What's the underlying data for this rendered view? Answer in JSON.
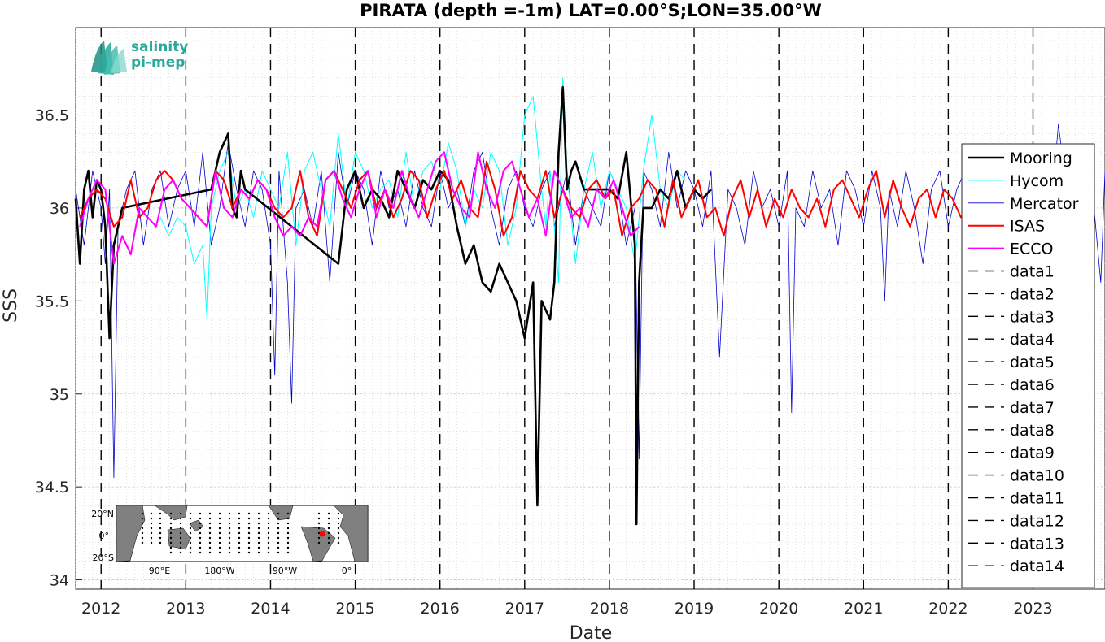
{
  "chart_data": {
    "type": "line",
    "title": "PIRATA (depth =-1m) LAT=0.00°S;LON=35.00°W",
    "xlabel": "Date",
    "ylabel": "SSS",
    "xlim": [
      2011.7,
      2023.85
    ],
    "ylim": [
      33.95,
      36.97
    ],
    "yticks": [
      34,
      34.5,
      35,
      35.5,
      36,
      36.5
    ],
    "ytick_labels": [
      "34",
      "34.5",
      "35",
      "35.5",
      "36",
      "36.5"
    ],
    "xticks": [
      2012,
      2013,
      2014,
      2015,
      2016,
      2017,
      2018,
      2019,
      2020,
      2021,
      2022,
      2023
    ],
    "xtick_labels": [
      "2012",
      "2013",
      "2014",
      "2015",
      "2016",
      "2017",
      "2018",
      "2019",
      "2020",
      "2021",
      "2022",
      "2023"
    ],
    "grid": true,
    "legend_position": "right",
    "vlines": [
      2012,
      2013,
      2014,
      2015,
      2016,
      2017,
      2018,
      2019,
      2020,
      2021,
      2022,
      2023
    ],
    "series": [
      {
        "name": "Mooring",
        "color": "#000000",
        "style": "solid",
        "x": [
          2011.7,
          2011.75,
          2011.8,
          2011.85,
          2011.9,
          2011.95,
          2012.0,
          2012.05,
          2012.1,
          2012.15,
          2012.2,
          2012.25,
          2013.3,
          2013.4,
          2013.5,
          2013.55,
          2013.6,
          2013.65,
          2013.7,
          2014.8,
          2014.9,
          2015.0,
          2015.1,
          2015.2,
          2015.3,
          2015.4,
          2015.5,
          2015.6,
          2015.7,
          2015.8,
          2015.9,
          2016.0,
          2016.1,
          2016.2,
          2016.3,
          2016.4,
          2016.5,
          2016.6,
          2016.7,
          2016.8,
          2016.9,
          2017.0,
          2017.1,
          2017.15,
          2017.2,
          2017.3,
          2017.35,
          2017.4,
          2017.45,
          2017.5,
          2017.55,
          2017.6,
          2017.7,
          2018.0,
          2018.1,
          2018.2,
          2018.3,
          2018.32,
          2018.35,
          2018.4,
          2018.5,
          2018.6,
          2018.7,
          2018.8,
          2018.9,
          2019.0,
          2019.1,
          2019.2
        ],
        "y": [
          36.05,
          35.7,
          36.1,
          36.2,
          35.95,
          36.15,
          36.1,
          35.9,
          35.3,
          35.8,
          35.9,
          36.0,
          36.1,
          36.3,
          36.4,
          36.0,
          35.95,
          36.2,
          36.1,
          35.7,
          36.1,
          36.2,
          36.0,
          36.1,
          36.05,
          35.95,
          36.2,
          36.1,
          36.0,
          36.15,
          36.1,
          36.2,
          36.15,
          35.9,
          35.7,
          35.8,
          35.6,
          35.55,
          35.7,
          35.6,
          35.5,
          35.3,
          35.6,
          34.4,
          35.5,
          35.4,
          35.6,
          36.3,
          36.65,
          36.1,
          36.2,
          36.25,
          36.1,
          36.1,
          36.05,
          36.3,
          35.8,
          34.3,
          35.6,
          36.0,
          36.0,
          36.1,
          36.05,
          36.2,
          36.0,
          36.1,
          36.05,
          36.1
        ]
      },
      {
        "name": "Hycom",
        "color": "#00ffff",
        "style": "solid",
        "x": [
          2012.7,
          2012.8,
          2012.9,
          2013.0,
          2013.1,
          2013.2,
          2013.25,
          2013.3,
          2013.4,
          2013.5,
          2013.6,
          2013.7,
          2013.8,
          2013.9,
          2014.0,
          2014.1,
          2014.2,
          2014.3,
          2014.4,
          2014.5,
          2014.6,
          2014.7,
          2014.8,
          2014.9,
          2015.0,
          2015.1,
          2015.2,
          2015.3,
          2015.4,
          2015.5,
          2015.6,
          2015.7,
          2015.8,
          2015.9,
          2016.0,
          2016.1,
          2016.2,
          2016.3,
          2016.4,
          2016.5,
          2016.6,
          2016.7,
          2016.8,
          2016.9,
          2017.0,
          2017.1,
          2017.2,
          2017.25,
          2017.3,
          2017.4,
          2017.45,
          2017.5,
          2017.6,
          2017.7,
          2017.8,
          2017.9,
          2018.0,
          2018.1,
          2018.2,
          2018.3,
          2018.4,
          2018.5,
          2018.6,
          2018.7,
          2018.8,
          2018.9
        ],
        "y": [
          35.95,
          35.85,
          35.95,
          35.9,
          35.7,
          35.8,
          35.4,
          36.0,
          36.2,
          36.3,
          36.0,
          36.1,
          35.95,
          36.2,
          36.1,
          36.0,
          36.3,
          35.8,
          36.2,
          36.3,
          36.1,
          35.9,
          36.4,
          36.0,
          36.3,
          36.2,
          36.0,
          36.1,
          36.15,
          35.95,
          36.3,
          36.0,
          36.2,
          36.25,
          36.1,
          36.35,
          36.2,
          35.9,
          36.1,
          36.0,
          36.3,
          36.2,
          35.8,
          36.0,
          36.5,
          36.6,
          36.1,
          35.9,
          36.2,
          35.6,
          36.7,
          36.2,
          35.7,
          36.1,
          36.3,
          36.0,
          36.2,
          36.1,
          36.0,
          35.7,
          36.2,
          36.5,
          36.1,
          36.0,
          36.2,
          36.15
        ]
      },
      {
        "name": "Mercator",
        "color": "#0000cd",
        "style": "solid",
        "x": [
          2011.7,
          2011.8,
          2011.9,
          2012.0,
          2012.05,
          2012.1,
          2012.15,
          2012.2,
          2012.3,
          2012.4,
          2012.5,
          2012.6,
          2012.7,
          2012.8,
          2012.9,
          2013.0,
          2013.1,
          2013.2,
          2013.3,
          2013.4,
          2013.5,
          2013.6,
          2013.7,
          2013.8,
          2013.9,
          2014.0,
          2014.05,
          2014.1,
          2014.2,
          2014.25,
          2014.3,
          2014.4,
          2014.5,
          2014.6,
          2014.7,
          2014.8,
          2014.9,
          2015.0,
          2015.1,
          2015.2,
          2015.3,
          2015.4,
          2015.5,
          2015.6,
          2015.7,
          2015.8,
          2015.9,
          2016.0,
          2016.1,
          2016.2,
          2016.3,
          2016.4,
          2016.5,
          2016.6,
          2016.7,
          2016.8,
          2016.9,
          2017.0,
          2017.1,
          2017.2,
          2017.3,
          2017.35,
          2017.4,
          2017.5,
          2017.6,
          2017.7,
          2017.8,
          2017.9,
          2018.0,
          2018.1,
          2018.2,
          2018.3,
          2018.35,
          2018.4,
          2018.5,
          2018.6,
          2018.7,
          2018.8,
          2018.9,
          2019.0,
          2019.1,
          2019.2,
          2019.3,
          2019.4,
          2019.5,
          2019.6,
          2019.7,
          2019.8,
          2019.9,
          2020.0,
          2020.1,
          2020.15,
          2020.2,
          2020.3,
          2020.4,
          2020.5,
          2020.6,
          2020.7,
          2020.8,
          2020.9,
          2021.0,
          2021.1,
          2021.2,
          2021.25,
          2021.3,
          2021.4,
          2021.5,
          2021.6,
          2021.7,
          2021.8,
          2021.9,
          2022.0,
          2022.1,
          2022.2,
          2022.3,
          2022.4,
          2022.5,
          2022.6,
          2022.7,
          2022.8,
          2022.9,
          2023.0,
          2023.1,
          2023.2,
          2023.3,
          2023.4,
          2023.5,
          2023.6,
          2023.7,
          2023.8,
          2023.85
        ],
        "y": [
          36.1,
          35.8,
          36.2,
          36.0,
          35.7,
          36.1,
          34.55,
          35.9,
          36.1,
          36.2,
          35.8,
          36.1,
          36.2,
          35.9,
          36.1,
          36.2,
          35.9,
          36.3,
          35.8,
          36.0,
          36.35,
          36.1,
          35.9,
          36.2,
          36.1,
          35.8,
          35.1,
          36.2,
          35.6,
          34.95,
          36.0,
          36.1,
          35.9,
          36.2,
          35.6,
          36.3,
          36.0,
          36.2,
          36.1,
          35.8,
          36.2,
          36.0,
          36.1,
          35.9,
          36.2,
          36.0,
          35.9,
          36.2,
          36.0,
          36.1,
          35.9,
          36.2,
          36.3,
          36.0,
          35.8,
          36.1,
          36.2,
          36.0,
          35.9,
          36.1,
          36.2,
          35.9,
          36.0,
          36.2,
          35.8,
          36.1,
          36.0,
          35.9,
          36.2,
          36.1,
          35.8,
          36.0,
          34.65,
          36.2,
          36.1,
          35.9,
          36.3,
          36.0,
          36.2,
          36.1,
          35.9,
          36.2,
          35.2,
          36.1,
          36.0,
          35.8,
          36.2,
          36.0,
          36.1,
          35.9,
          36.2,
          34.9,
          36.0,
          35.9,
          36.2,
          36.0,
          36.1,
          35.8,
          36.2,
          36.1,
          35.9,
          36.2,
          36.0,
          35.5,
          36.1,
          35.9,
          36.2,
          36.0,
          35.7,
          36.1,
          36.2,
          35.9,
          36.1,
          36.2,
          35.9,
          36.0,
          36.2,
          35.8,
          36.1,
          36.0,
          35.9,
          36.2,
          36.1,
          35.9,
          36.45,
          36.1,
          35.8,
          36.2,
          36.1,
          35.6,
          36.2
        ]
      },
      {
        "name": "ISAS",
        "color": "#ff0000",
        "style": "solid",
        "x": [
          2011.75,
          2011.85,
          2011.95,
          2012.05,
          2012.15,
          2012.25,
          2012.35,
          2012.45,
          2012.55,
          2012.65,
          2012.75,
          2012.85,
          2012.95,
          2013.05,
          2013.15,
          2013.25,
          2013.35,
          2013.45,
          2013.55,
          2013.65,
          2013.75,
          2013.85,
          2013.95,
          2014.05,
          2014.15,
          2014.25,
          2014.35,
          2014.45,
          2014.55,
          2014.65,
          2014.75,
          2014.85,
          2014.95,
          2015.05,
          2015.15,
          2015.25,
          2015.35,
          2015.45,
          2015.55,
          2015.65,
          2015.75,
          2015.85,
          2015.95,
          2016.05,
          2016.15,
          2016.25,
          2016.35,
          2016.45,
          2016.55,
          2016.65,
          2016.75,
          2016.85,
          2016.95,
          2017.05,
          2017.15,
          2017.25,
          2017.35,
          2017.45,
          2017.55,
          2017.65,
          2017.75,
          2017.85,
          2017.95,
          2018.05,
          2018.15,
          2018.25,
          2018.35,
          2018.45,
          2018.55,
          2018.65,
          2018.75,
          2018.85,
          2018.95,
          2019.05,
          2019.15,
          2019.25,
          2019.35,
          2019.45,
          2019.55,
          2019.65,
          2019.75,
          2019.85,
          2019.95,
          2020.05,
          2020.15,
          2020.25,
          2020.35,
          2020.45,
          2020.55,
          2020.65,
          2020.75,
          2020.85,
          2020.95,
          2021.05,
          2021.15,
          2021.25,
          2021.35,
          2021.45,
          2021.55,
          2021.65,
          2021.75,
          2021.85,
          2021.95,
          2022.05,
          2022.15,
          2022.25
        ],
        "y": [
          35.95,
          36.05,
          36.1,
          36.05,
          35.9,
          35.95,
          36.15,
          35.95,
          36.0,
          36.15,
          36.2,
          36.15,
          36.05,
          36.0,
          35.95,
          35.9,
          36.2,
          36.15,
          36.0,
          36.1,
          36.05,
          36.15,
          36.1,
          36.0,
          35.95,
          36.0,
          36.2,
          35.95,
          35.85,
          36.15,
          36.2,
          36.1,
          36.0,
          36.15,
          36.2,
          36.0,
          36.1,
          35.95,
          36.05,
          36.2,
          36.15,
          35.95,
          36.1,
          36.2,
          36.05,
          36.15,
          36.0,
          35.95,
          36.25,
          36.1,
          35.85,
          35.95,
          36.2,
          36.1,
          36.05,
          36.2,
          35.95,
          36.1,
          36.0,
          35.95,
          36.1,
          36.15,
          36.05,
          36.1,
          35.85,
          36.0,
          36.05,
          36.15,
          36.1,
          35.9,
          36.15,
          35.95,
          36.05,
          36.15,
          35.95,
          36.0,
          35.85,
          36.05,
          36.15,
          35.95,
          36.1,
          35.9,
          36.05,
          35.95,
          36.1,
          36.0,
          35.95,
          36.05,
          35.9,
          36.1,
          36.15,
          36.05,
          35.95,
          36.1,
          36.2,
          35.95,
          36.15,
          36.0,
          35.9,
          36.05,
          36.1,
          35.95,
          36.1,
          36.05,
          35.95,
          36.0
        ]
      },
      {
        "name": "ECCO",
        "color": "#ff00ff",
        "style": "solid",
        "x": [
          2011.75,
          2011.85,
          2011.95,
          2012.05,
          2012.15,
          2012.25,
          2012.35,
          2012.45,
          2012.55,
          2012.65,
          2012.75,
          2012.85,
          2012.95,
          2013.05,
          2013.15,
          2013.25,
          2013.35,
          2013.45,
          2013.55,
          2013.65,
          2013.75,
          2013.85,
          2013.95,
          2014.05,
          2014.15,
          2014.25,
          2014.35,
          2014.45,
          2014.55,
          2014.65,
          2014.75,
          2014.85,
          2014.95,
          2015.05,
          2015.15,
          2015.25,
          2015.35,
          2015.45,
          2015.55,
          2015.65,
          2015.75,
          2015.85,
          2015.95,
          2016.05,
          2016.15,
          2016.25,
          2016.35,
          2016.45,
          2016.55,
          2016.65,
          2016.75,
          2016.85,
          2016.95,
          2017.05,
          2017.15,
          2017.25,
          2017.35,
          2017.45,
          2017.55,
          2017.65,
          2017.75,
          2017.85,
          2017.95,
          2018.05,
          2018.15,
          2018.25,
          2018.35
        ],
        "y": [
          35.9,
          36.05,
          36.15,
          36.1,
          35.7,
          35.85,
          35.75,
          36.0,
          35.95,
          35.9,
          36.1,
          36.15,
          36.05,
          36.0,
          35.95,
          35.9,
          36.2,
          36.0,
          35.95,
          36.1,
          36.05,
          36.15,
          36.1,
          35.95,
          35.85,
          35.9,
          35.85,
          35.95,
          35.9,
          36.15,
          36.2,
          36.05,
          35.95,
          36.1,
          36.2,
          35.95,
          36.1,
          36.0,
          36.2,
          36.05,
          35.95,
          36.1,
          36.25,
          36.3,
          36.1,
          36.0,
          35.95,
          36.3,
          36.1,
          36.0,
          36.2,
          36.25,
          36.1,
          35.95,
          36.05,
          35.85,
          36.2,
          36.1,
          35.95,
          36.0,
          35.9,
          36.1,
          36.05,
          36.15,
          36.0,
          35.85,
          35.9
        ]
      },
      {
        "name": "data1",
        "color": "#000000",
        "style": "dashed"
      },
      {
        "name": "data2",
        "color": "#000000",
        "style": "dashed"
      },
      {
        "name": "data3",
        "color": "#000000",
        "style": "dashed"
      },
      {
        "name": "data4",
        "color": "#000000",
        "style": "dashed"
      },
      {
        "name": "data5",
        "color": "#000000",
        "style": "dashed"
      },
      {
        "name": "data6",
        "color": "#000000",
        "style": "dashed"
      },
      {
        "name": "data7",
        "color": "#000000",
        "style": "dashed"
      },
      {
        "name": "data8",
        "color": "#000000",
        "style": "dashed"
      },
      {
        "name": "data9",
        "color": "#000000",
        "style": "dashed"
      },
      {
        "name": "data10",
        "color": "#000000",
        "style": "dashed"
      },
      {
        "name": "data11",
        "color": "#000000",
        "style": "dashed"
      },
      {
        "name": "data12",
        "color": "#000000",
        "style": "dashed"
      },
      {
        "name": "data13",
        "color": "#000000",
        "style": "dashed"
      },
      {
        "name": "data14",
        "color": "#000000",
        "style": "dashed"
      }
    ]
  },
  "logo": {
    "line1": "salinity",
    "line2": "pi-mep",
    "color": "#2aa99a"
  },
  "inset_map": {
    "lat_labels": [
      "20°N",
      "0°",
      "20°S"
    ],
    "lon_labels": [
      "90°E",
      "180°W",
      "90°W",
      "0°"
    ],
    "marker_color": "#ff0000"
  }
}
